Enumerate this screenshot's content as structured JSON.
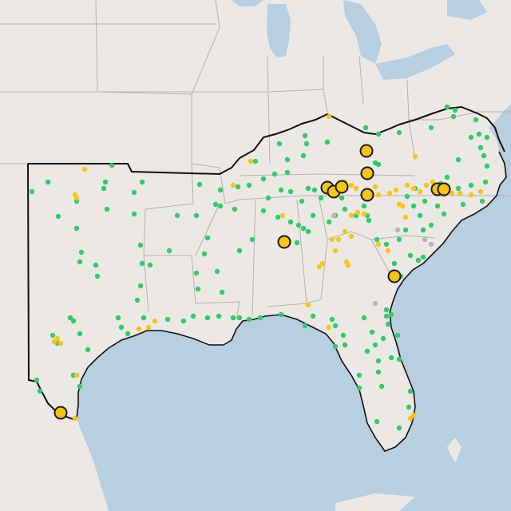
{
  "map": {
    "basemap": "grayscale-land-light-blue-water",
    "colors": {
      "land": "#ebe8e5",
      "water": "#b8cfe0",
      "state_border": "#b3b0ae",
      "region_outline": "#111111",
      "green_marker": "#2fcc6a",
      "yellow_marker": "#f5c518",
      "large_marker_stroke": "#1a1a1a",
      "gray_marker": "#b4b8bc"
    },
    "legend": "none",
    "labels": "none",
    "marker_categories": [
      {
        "color_key": "green_marker",
        "size": "small"
      },
      {
        "color_key": "yellow_marker",
        "size": "small"
      },
      {
        "color_key": "yellow_marker",
        "size": "large-outlined"
      }
    ]
  }
}
